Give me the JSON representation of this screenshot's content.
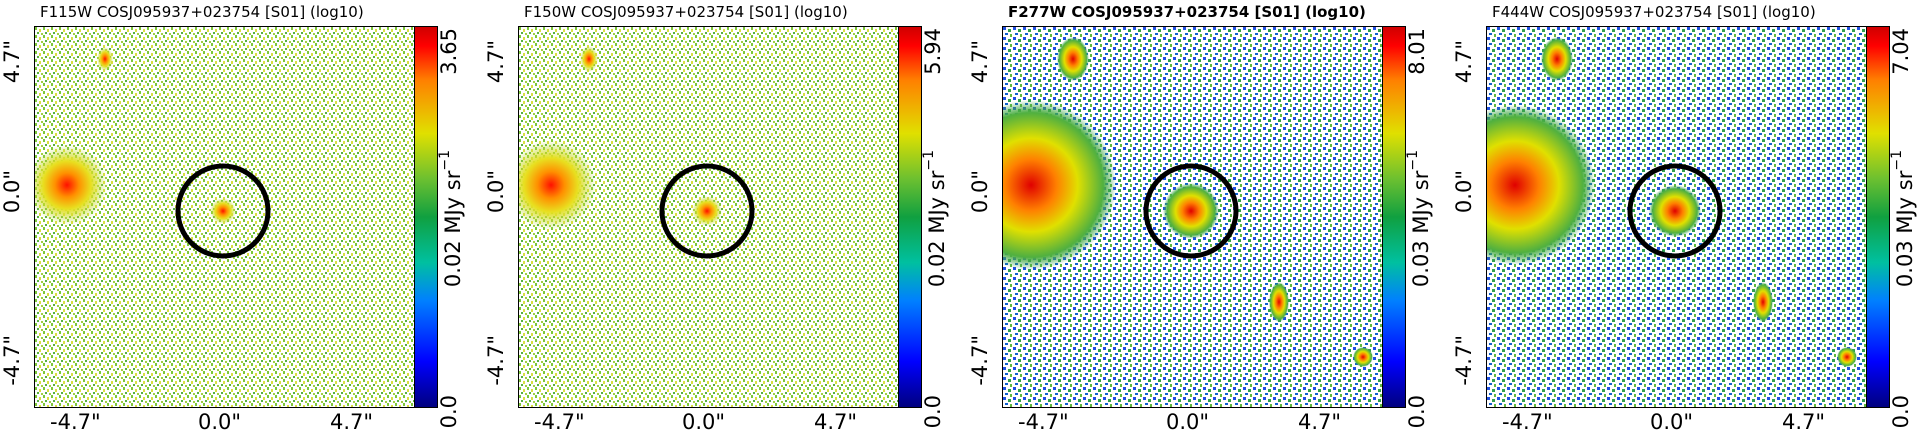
{
  "panels": [
    {
      "title": "F115W COSJ095937+023754 [S01] (log10)",
      "title_bold": false,
      "cbar_max": "3.65",
      "cbar_mid": "0.02",
      "cbar_min": "0.0",
      "cbar_unit": "MJy sr",
      "cbar_unit_exp": "−1",
      "ytick_top": "4.7\"",
      "ytick_mid": "0.0\"",
      "ytick_bot": "-4.7\"",
      "xtick_left": "-4.7\"",
      "xtick_mid": "0.0\"",
      "xtick_right": "4.7\""
    },
    {
      "title": "F150W COSJ095937+023754 [S01] (log10)",
      "title_bold": false,
      "cbar_max": "5.94",
      "cbar_mid": "0.02",
      "cbar_min": "0.0",
      "cbar_unit": "MJy sr",
      "cbar_unit_exp": "−1",
      "ytick_top": "4.7\"",
      "ytick_mid": "0.0\"",
      "ytick_bot": "-4.7\"",
      "xtick_left": "-4.7\"",
      "xtick_mid": "0.0\"",
      "xtick_right": "4.7\""
    },
    {
      "title": "F277W COSJ095937+023754 [S01] (log10)",
      "title_bold": true,
      "cbar_max": "8.01",
      "cbar_mid": "0.03",
      "cbar_min": "0.0",
      "cbar_unit": "MJy sr",
      "cbar_unit_exp": "−1",
      "ytick_top": "4.7\"",
      "ytick_mid": "0.0\"",
      "ytick_bot": "-4.7\"",
      "xtick_left": "-4.7\"",
      "xtick_mid": "0.0\"",
      "xtick_right": "4.7\""
    },
    {
      "title": "F444W COSJ095937+023754 [S01] (log10)",
      "title_bold": false,
      "cbar_max": "7.04",
      "cbar_mid": "0.03",
      "cbar_min": "0.0",
      "cbar_unit": "MJy sr",
      "cbar_unit_exp": "−1",
      "ytick_top": "4.7\"",
      "ytick_mid": "0.0\"",
      "ytick_bot": "-4.7\"",
      "xtick_left": "-4.7\"",
      "xtick_mid": "0.0\"",
      "xtick_right": "4.7\""
    }
  ],
  "colors": {
    "noise_green": "#6cc030",
    "noise_yellow": "#d8e040",
    "noise_blue": "#2050e0",
    "source_core": "#ff2000",
    "aperture": "#000000"
  }
}
